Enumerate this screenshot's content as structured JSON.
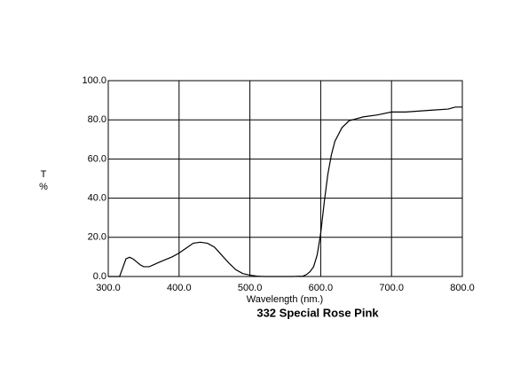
{
  "chart_data": {
    "type": "line",
    "title": "332 Special Rose Pink",
    "xlabel": "Wavelength (nm.)",
    "ylabel": [
      "T",
      "%"
    ],
    "x": [
      300,
      310,
      316,
      320,
      325,
      330,
      335,
      340,
      345,
      350,
      358,
      370,
      380,
      390,
      400,
      410,
      420,
      430,
      440,
      450,
      460,
      470,
      480,
      490,
      500,
      510,
      520,
      560,
      575,
      580,
      585,
      590,
      595,
      600,
      605,
      610,
      615,
      620,
      630,
      640,
      650,
      660,
      680,
      700,
      720,
      740,
      760,
      780,
      790,
      800
    ],
    "series": [
      {
        "color": "#000000",
        "values": [
          0,
          0,
          0,
          4,
          9,
          9.8,
          9,
          7.5,
          6,
          5,
          5,
          7,
          8.5,
          10,
          12,
          14.5,
          17,
          17.5,
          17,
          15,
          11,
          7,
          3.5,
          1.5,
          0.7,
          0.2,
          0,
          0,
          0.2,
          1,
          2.5,
          5,
          11,
          22,
          38,
          52,
          62,
          69,
          76,
          79.5,
          80.5,
          81.5,
          82.5,
          84,
          84,
          84.5,
          85,
          85.5,
          86.5,
          86.5
        ]
      }
    ],
    "xlim": [
      300,
      800
    ],
    "ylim": [
      0,
      100
    ],
    "xticks": [
      {
        "value": 300,
        "label": "300.0"
      },
      {
        "value": 400,
        "label": "400.0"
      },
      {
        "value": 500,
        "label": "500.0"
      },
      {
        "value": 600,
        "label": "600.0"
      },
      {
        "value": 700,
        "label": "700.0"
      },
      {
        "value": 800,
        "label": "800.0"
      }
    ],
    "yticks": [
      {
        "value": 0,
        "label": "0.0"
      },
      {
        "value": 20,
        "label": "20.0"
      },
      {
        "value": 40,
        "label": "40.0"
      },
      {
        "value": 60,
        "label": "60.0"
      },
      {
        "value": 80,
        "label": "80.0"
      },
      {
        "value": 100,
        "label": "100.0"
      }
    ],
    "grid": true
  }
}
